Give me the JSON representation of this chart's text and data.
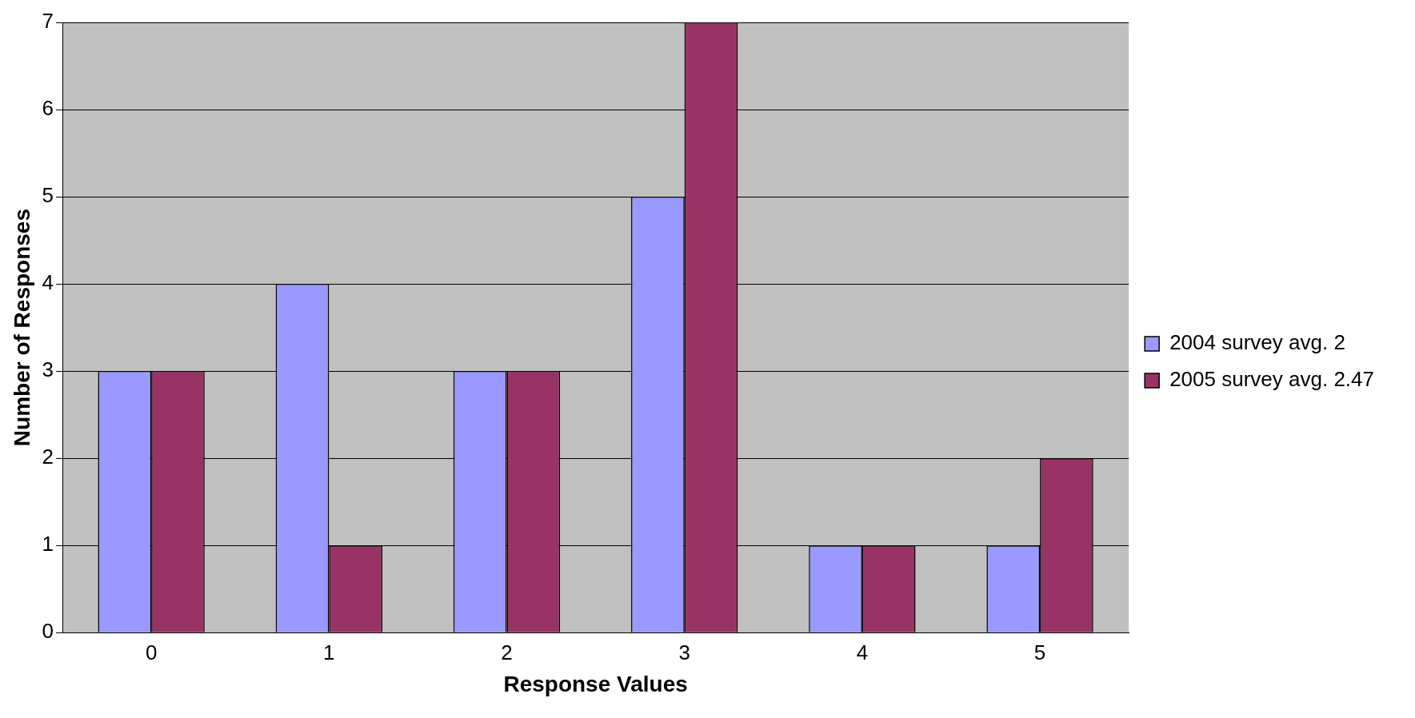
{
  "chart_data": {
    "type": "bar",
    "xlabel": "Response Values",
    "ylabel": "Number of Responses",
    "categories": [
      "0",
      "1",
      "2",
      "3",
      "4",
      "5"
    ],
    "series": [
      {
        "name": "2004 survey avg. 2",
        "color": "#9999ff",
        "values": [
          3,
          4,
          3,
          5,
          1,
          1
        ]
      },
      {
        "name": "2005 survey avg. 2.47",
        "color": "#993366",
        "values": [
          3,
          1,
          3,
          7,
          1,
          2
        ]
      }
    ],
    "ylim": [
      0,
      7
    ],
    "yticks": [
      0,
      1,
      2,
      3,
      4,
      5,
      6,
      7
    ],
    "grid": "y",
    "legend": "right"
  }
}
